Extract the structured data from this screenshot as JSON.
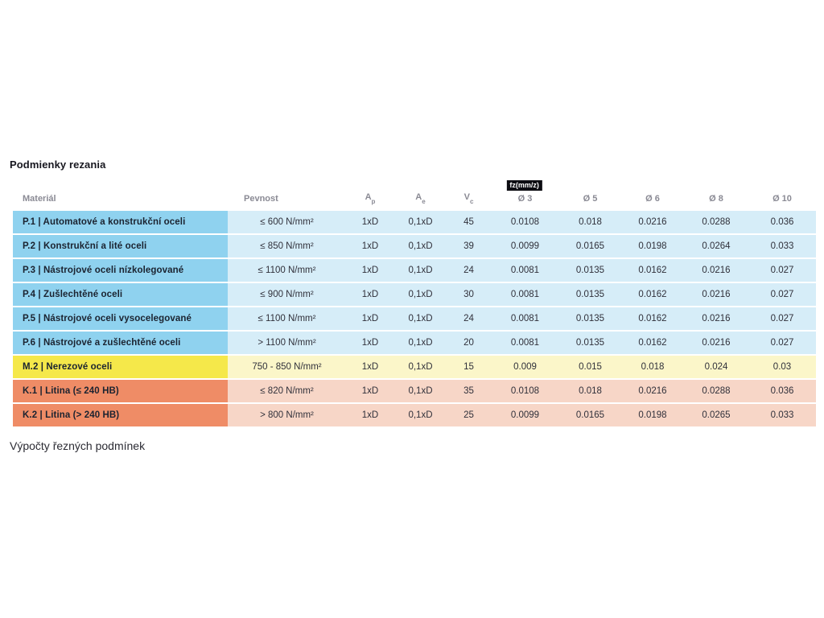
{
  "page": {
    "title": "Podmienky rezania",
    "footer_title": "Výpočty řezných podmínek"
  },
  "table": {
    "fz_badge": "fz(mm/z)",
    "headers": [
      {
        "label": "Materiál"
      },
      {
        "label": "Pevnost"
      },
      {
        "label": "A",
        "sub": "p"
      },
      {
        "label": "A",
        "sub": "e"
      },
      {
        "label": "V",
        "sub": "c"
      },
      {
        "label": "Ø 3"
      },
      {
        "label": "Ø 5"
      },
      {
        "label": "Ø 6"
      },
      {
        "label": "Ø 8"
      },
      {
        "label": "Ø 10"
      }
    ],
    "rows": [
      {
        "group": "P",
        "cells": [
          "P.1 | Automatové a konstrukční oceli",
          "≤ 600 N/mm²",
          "1xD",
          "0,1xD",
          "45",
          "0.0108",
          "0.018",
          "0.0216",
          "0.0288",
          "0.036"
        ]
      },
      {
        "group": "P",
        "cells": [
          "P.2 | Konstrukční a lité oceli",
          "≤ 850 N/mm²",
          "1xD",
          "0,1xD",
          "39",
          "0.0099",
          "0.0165",
          "0.0198",
          "0.0264",
          "0.033"
        ]
      },
      {
        "group": "P",
        "cells": [
          "P.3 | Nástrojové oceli nízkolegované",
          "≤ 1100 N/mm²",
          "1xD",
          "0,1xD",
          "24",
          "0.0081",
          "0.0135",
          "0.0162",
          "0.0216",
          "0.027"
        ]
      },
      {
        "group": "P",
        "cells": [
          "P.4 | Zušlechtěné oceli",
          "≤ 900 N/mm²",
          "1xD",
          "0,1xD",
          "30",
          "0.0081",
          "0.0135",
          "0.0162",
          "0.0216",
          "0.027"
        ]
      },
      {
        "group": "P",
        "cells": [
          "P.5 | Nástrojové oceli vysocelegované",
          "≤ 1100 N/mm²",
          "1xD",
          "0,1xD",
          "24",
          "0.0081",
          "0.0135",
          "0.0162",
          "0.0216",
          "0.027"
        ]
      },
      {
        "group": "P",
        "cells": [
          "P.6 | Nástrojové a zušlechtěné oceli",
          "> 1100 N/mm²",
          "1xD",
          "0,1xD",
          "20",
          "0.0081",
          "0.0135",
          "0.0162",
          "0.0216",
          "0.027"
        ]
      },
      {
        "group": "M",
        "cells": [
          "M.2 | Nerezové oceli",
          "750 - 850 N/mm²",
          "1xD",
          "0,1xD",
          "15",
          "0.009",
          "0.015",
          "0.018",
          "0.024",
          "0.03"
        ]
      },
      {
        "group": "K",
        "cells": [
          "K.1 | Litina (≤ 240 HB)",
          "≤ 820 N/mm²",
          "1xD",
          "0,1xD",
          "35",
          "0.0108",
          "0.018",
          "0.0216",
          "0.0288",
          "0.036"
        ]
      },
      {
        "group": "K",
        "cells": [
          "K.2 | Litina (> 240 HB)",
          "> 800 N/mm²",
          "1xD",
          "0,1xD",
          "25",
          "0.0099",
          "0.0165",
          "0.0198",
          "0.0265",
          "0.033"
        ]
      }
    ],
    "colors": {
      "blue_label": "#8FD2EF",
      "blue_cell": "#D6EDF8",
      "yellow_label": "#F5E84A",
      "yellow_cell": "#FBF6C9",
      "salmon_label": "#EF8C66",
      "salmon_cell": "#F7D6C7",
      "badge_bg": "#0D0D12",
      "header_text": "#8A8A94"
    }
  }
}
